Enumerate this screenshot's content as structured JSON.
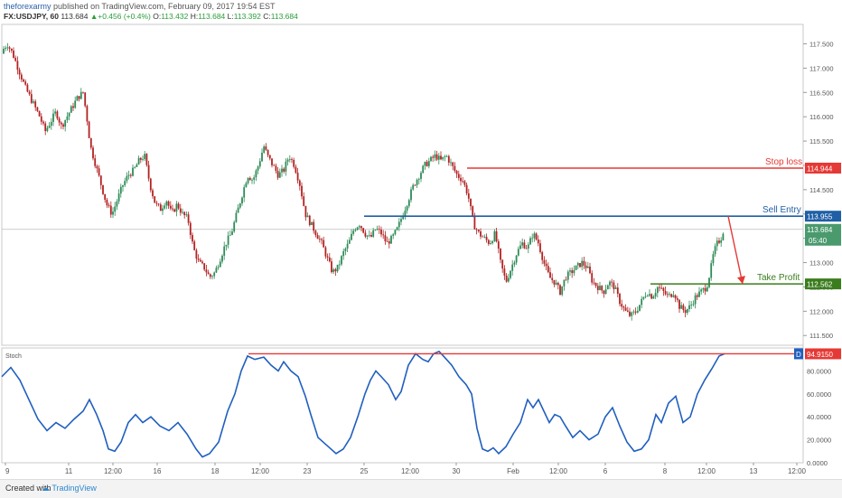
{
  "header": {
    "author": "theforexarmy",
    "published": "published on TradingView.com, February 09, 2017 19:54 EST",
    "symbol": "FX:USDJPY, 60",
    "last": "113.684",
    "change_arrow": "▲",
    "change": "+0.456 (+0.4%)",
    "o_label": "O:",
    "o_value": "113.432",
    "h_label": "H:",
    "h_value": "113.684",
    "l_label": "L:",
    "l_value": "113.392",
    "c_label": "C:",
    "c_value": "113.684"
  },
  "footer": {
    "created_with": "Created with",
    "brand": "TradingView",
    "logo_icon": "tradingview-cloud-icon"
  },
  "colors": {
    "bull": "#2e8b57",
    "bear": "#b22222",
    "red_level": "#e53935",
    "blue_level": "#1f5fa6",
    "green_level": "#3b7d1e",
    "stoch": "#1f5fbf"
  },
  "chart_data": [
    {
      "type": "candlestick",
      "symbol": "USDJPY",
      "ylim": [
        111.3,
        117.9
      ],
      "y_ticks": [
        "117.500",
        "117.000",
        "116.500",
        "116.000",
        "115.500",
        "115.000",
        "114.500",
        "114.000",
        "113.500",
        "113.000",
        "112.500",
        "112.000",
        "111.500"
      ],
      "x_ticks": [
        "9",
        "11",
        "12:00",
        "16",
        "18",
        "12:00",
        "23",
        "25",
        "12:00",
        "30",
        "Feb",
        "12:00",
        "6",
        "8",
        "12:00",
        "13",
        "12:00"
      ],
      "price_path": [
        [
          0,
          117.3
        ],
        [
          8,
          117.5
        ],
        [
          14,
          117.3
        ],
        [
          20,
          117.0
        ],
        [
          28,
          116.6
        ],
        [
          36,
          116.3
        ],
        [
          44,
          116.0
        ],
        [
          50,
          115.7
        ],
        [
          56,
          115.9
        ],
        [
          62,
          116.1
        ],
        [
          68,
          115.8
        ],
        [
          74,
          116.0
        ],
        [
          80,
          116.2
        ],
        [
          86,
          116.4
        ],
        [
          92,
          116.5
        ],
        [
          96,
          116.0
        ],
        [
          100,
          115.4
        ],
        [
          106,
          115.0
        ],
        [
          112,
          114.6
        ],
        [
          118,
          114.2
        ],
        [
          124,
          114.0
        ],
        [
          130,
          114.3
        ],
        [
          136,
          114.6
        ],
        [
          142,
          114.8
        ],
        [
          148,
          114.9
        ],
        [
          154,
          115.1
        ],
        [
          160,
          115.2
        ],
        [
          166,
          114.6
        ],
        [
          172,
          114.2
        ],
        [
          178,
          114.1
        ],
        [
          184,
          114.3
        ],
        [
          190,
          114.0
        ],
        [
          196,
          114.2
        ],
        [
          202,
          114.0
        ],
        [
          208,
          113.9
        ],
        [
          214,
          113.3
        ],
        [
          220,
          113.0
        ],
        [
          226,
          112.9
        ],
        [
          232,
          112.7
        ],
        [
          238,
          112.8
        ],
        [
          244,
          113.1
        ],
        [
          250,
          113.4
        ],
        [
          256,
          113.6
        ],
        [
          262,
          114.0
        ],
        [
          268,
          114.4
        ],
        [
          274,
          114.8
        ],
        [
          280,
          114.7
        ],
        [
          286,
          115.0
        ],
        [
          292,
          115.4
        ],
        [
          296,
          115.2
        ],
        [
          302,
          115.0
        ],
        [
          308,
          114.8
        ],
        [
          314,
          114.9
        ],
        [
          320,
          115.2
        ],
        [
          326,
          115.0
        ],
        [
          332,
          114.6
        ],
        [
          338,
          114.0
        ],
        [
          344,
          113.8
        ],
        [
          350,
          113.6
        ],
        [
          356,
          113.4
        ],
        [
          362,
          113.1
        ],
        [
          368,
          112.8
        ],
        [
          374,
          112.9
        ],
        [
          380,
          113.2
        ],
        [
          386,
          113.4
        ],
        [
          392,
          113.7
        ],
        [
          398,
          113.8
        ],
        [
          404,
          113.6
        ],
        [
          410,
          113.5
        ],
        [
          416,
          113.7
        ],
        [
          422,
          113.6
        ],
        [
          428,
          113.4
        ],
        [
          434,
          113.5
        ],
        [
          440,
          113.7
        ],
        [
          446,
          114.0
        ],
        [
          452,
          114.3
        ],
        [
          458,
          114.6
        ],
        [
          464,
          114.8
        ],
        [
          470,
          115.0
        ],
        [
          476,
          115.1
        ],
        [
          482,
          115.2
        ],
        [
          488,
          115.1
        ],
        [
          494,
          115.2
        ],
        [
          500,
          115.0
        ],
        [
          506,
          114.8
        ],
        [
          512,
          114.7
        ],
        [
          518,
          114.4
        ],
        [
          524,
          113.8
        ],
        [
          530,
          113.6
        ],
        [
          536,
          113.5
        ],
        [
          542,
          113.4
        ],
        [
          548,
          113.6
        ],
        [
          554,
          113.0
        ],
        [
          560,
          112.6
        ],
        [
          566,
          112.9
        ],
        [
          572,
          113.2
        ],
        [
          578,
          113.4
        ],
        [
          584,
          113.3
        ],
        [
          590,
          113.6
        ],
        [
          596,
          113.4
        ],
        [
          602,
          113.0
        ],
        [
          608,
          112.7
        ],
        [
          614,
          112.6
        ],
        [
          620,
          112.4
        ],
        [
          626,
          112.7
        ],
        [
          632,
          112.8
        ],
        [
          638,
          112.9
        ],
        [
          644,
          113.0
        ],
        [
          650,
          112.9
        ],
        [
          656,
          112.6
        ],
        [
          662,
          112.5
        ],
        [
          668,
          112.4
        ],
        [
          674,
          112.6
        ],
        [
          680,
          112.5
        ],
        [
          686,
          112.2
        ],
        [
          692,
          112.0
        ],
        [
          698,
          111.9
        ],
        [
          704,
          112.0
        ],
        [
          710,
          112.2
        ],
        [
          716,
          112.4
        ],
        [
          722,
          112.3
        ],
        [
          728,
          112.5
        ],
        [
          734,
          112.4
        ],
        [
          740,
          112.3
        ],
        [
          746,
          112.4
        ],
        [
          752,
          112.1
        ],
        [
          758,
          112.0
        ],
        [
          764,
          112.1
        ],
        [
          770,
          112.3
        ],
        [
          776,
          112.4
        ],
        [
          782,
          112.5
        ],
        [
          786,
          112.8
        ],
        [
          790,
          113.2
        ],
        [
          794,
          113.4
        ],
        [
          798,
          113.5
        ],
        [
          801,
          113.684
        ]
      ],
      "last_price": "113.684",
      "countdown": "05:40",
      "levels": [
        {
          "name": "Stop loss",
          "value": 114.944,
          "label": "114.944",
          "color": "#e53935"
        },
        {
          "name": "Sell Entry",
          "value": 113.955,
          "label": "113.955",
          "color": "#1f5fa6"
        },
        {
          "name": "Take Profit",
          "value": 112.562,
          "label": "112.562",
          "color": "#3b7d1e"
        }
      ]
    },
    {
      "type": "line",
      "title": "Stoch",
      "ylim": [
        0,
        100
      ],
      "y_ticks": [
        "80.0000",
        "60.0000",
        "40.0000",
        "20.0000",
        "0.0000"
      ],
      "last_value": "94.9150",
      "marker": "D",
      "series": [
        {
          "values": [
            [
              0,
              75
            ],
            [
              10,
              83
            ],
            [
              20,
              72
            ],
            [
              30,
              55
            ],
            [
              40,
              38
            ],
            [
              50,
              28
            ],
            [
              60,
              35
            ],
            [
              70,
              30
            ],
            [
              80,
              38
            ],
            [
              90,
              45
            ],
            [
              97,
              55
            ],
            [
              105,
              42
            ],
            [
              112,
              28
            ],
            [
              118,
              12
            ],
            [
              125,
              10
            ],
            [
              132,
              18
            ],
            [
              140,
              35
            ],
            [
              148,
              42
            ],
            [
              156,
              35
            ],
            [
              165,
              40
            ],
            [
              175,
              32
            ],
            [
              185,
              28
            ],
            [
              195,
              35
            ],
            [
              205,
              25
            ],
            [
              215,
              12
            ],
            [
              222,
              5
            ],
            [
              230,
              8
            ],
            [
              240,
              18
            ],
            [
              250,
              45
            ],
            [
              258,
              60
            ],
            [
              265,
              80
            ],
            [
              272,
              93
            ],
            [
              280,
              90
            ],
            [
              290,
              92
            ],
            [
              298,
              85
            ],
            [
              306,
              80
            ],
            [
              312,
              88
            ],
            [
              320,
              80
            ],
            [
              328,
              75
            ],
            [
              336,
              58
            ],
            [
              342,
              42
            ],
            [
              350,
              22
            ],
            [
              360,
              15
            ],
            [
              370,
              8
            ],
            [
              378,
              12
            ],
            [
              386,
              22
            ],
            [
              394,
              40
            ],
            [
              402,
              60
            ],
            [
              408,
              72
            ],
            [
              414,
              80
            ],
            [
              420,
              75
            ],
            [
              428,
              68
            ],
            [
              436,
              55
            ],
            [
              442,
              62
            ],
            [
              450,
              85
            ],
            [
              458,
              95
            ],
            [
              466,
              90
            ],
            [
              472,
              88
            ],
            [
              478,
              95
            ],
            [
              484,
              97
            ],
            [
              490,
              92
            ],
            [
              498,
              85
            ],
            [
              506,
              75
            ],
            [
              514,
              68
            ],
            [
              520,
              60
            ],
            [
              526,
              30
            ],
            [
              532,
              12
            ],
            [
              538,
              10
            ],
            [
              544,
              13
            ],
            [
              550,
              8
            ],
            [
              558,
              14
            ],
            [
              566,
              25
            ],
            [
              574,
              35
            ],
            [
              582,
              55
            ],
            [
              588,
              48
            ],
            [
              594,
              55
            ],
            [
              600,
              45
            ],
            [
              606,
              35
            ],
            [
              612,
              42
            ],
            [
              618,
              40
            ],
            [
              624,
              32
            ],
            [
              632,
              22
            ],
            [
              640,
              28
            ],
            [
              650,
              20
            ],
            [
              660,
              25
            ],
            [
              668,
              40
            ],
            [
              676,
              48
            ],
            [
              684,
              32
            ],
            [
              692,
              18
            ],
            [
              700,
              10
            ],
            [
              708,
              12
            ],
            [
              716,
              20
            ],
            [
              724,
              42
            ],
            [
              730,
              35
            ],
            [
              738,
              52
            ],
            [
              746,
              58
            ],
            [
              754,
              35
            ],
            [
              762,
              40
            ],
            [
              770,
              60
            ],
            [
              778,
              72
            ],
            [
              786,
              82
            ],
            [
              794,
              93
            ],
            [
              800,
              95
            ]
          ]
        }
      ],
      "level": 94.915
    }
  ]
}
